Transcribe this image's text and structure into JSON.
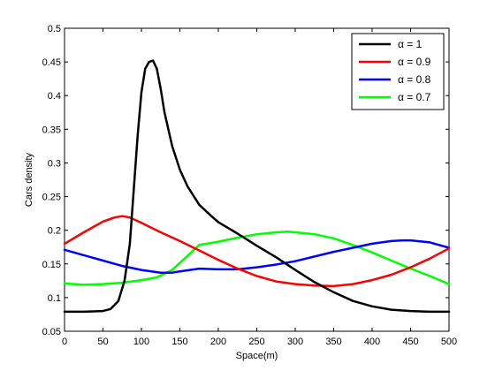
{
  "chart_data": {
    "type": "line",
    "xlabel": "Space(m)",
    "ylabel": "Cars density",
    "xlim": [
      0,
      500
    ],
    "ylim": [
      0.05,
      0.5
    ],
    "xticks": [
      0,
      50,
      100,
      150,
      200,
      250,
      300,
      350,
      400,
      450,
      500
    ],
    "yticks": [
      0.05,
      0.1,
      0.15,
      0.2,
      0.25,
      0.3,
      0.35,
      0.4,
      0.45,
      0.5
    ],
    "xtick_labels": [
      "0",
      "50",
      "100",
      "150",
      "200",
      "250",
      "300",
      "350",
      "400",
      "450",
      "500"
    ],
    "ytick_labels": [
      "0.05",
      "0.1",
      "0.15",
      "0.2",
      "0.25",
      "0.3",
      "0.35",
      "0.4",
      "0.45",
      "0.5"
    ],
    "grid": false,
    "legend_position": "top-right",
    "series": [
      {
        "name": "α = 1",
        "color": "#000000",
        "x": [
          0,
          25,
          50,
          60,
          70,
          78,
          85,
          90,
          95,
          100,
          105,
          110,
          115,
          120,
          125,
          130,
          140,
          150,
          160,
          175,
          190,
          200,
          225,
          250,
          275,
          300,
          325,
          350,
          375,
          400,
          425,
          450,
          475,
          500
        ],
        "y": [
          0.079,
          0.079,
          0.08,
          0.083,
          0.095,
          0.125,
          0.18,
          0.26,
          0.34,
          0.405,
          0.44,
          0.45,
          0.452,
          0.44,
          0.41,
          0.375,
          0.325,
          0.29,
          0.265,
          0.238,
          0.222,
          0.212,
          0.195,
          0.177,
          0.16,
          0.141,
          0.123,
          0.108,
          0.095,
          0.087,
          0.082,
          0.08,
          0.079,
          0.079
        ]
      },
      {
        "name": "α = 0.9",
        "color": "#ff0000",
        "x": [
          0,
          25,
          50,
          65,
          75,
          85,
          100,
          125,
          150,
          175,
          200,
          225,
          250,
          275,
          300,
          325,
          350,
          375,
          400,
          425,
          450,
          475,
          500
        ],
        "y": [
          0.18,
          0.197,
          0.213,
          0.219,
          0.221,
          0.219,
          0.211,
          0.197,
          0.184,
          0.17,
          0.156,
          0.143,
          0.132,
          0.124,
          0.12,
          0.118,
          0.117,
          0.12,
          0.126,
          0.134,
          0.145,
          0.158,
          0.173
        ]
      },
      {
        "name": "α = 0.8",
        "color": "#0000ff",
        "x": [
          0,
          25,
          50,
          75,
          100,
          125,
          140,
          150,
          175,
          200,
          225,
          250,
          275,
          300,
          325,
          350,
          375,
          400,
          425,
          440,
          450,
          475,
          500
        ],
        "y": [
          0.171,
          0.163,
          0.155,
          0.147,
          0.141,
          0.137,
          0.137,
          0.139,
          0.143,
          0.142,
          0.142,
          0.145,
          0.149,
          0.154,
          0.161,
          0.168,
          0.174,
          0.18,
          0.184,
          0.185,
          0.185,
          0.182,
          0.174
        ]
      },
      {
        "name": "α = 0.7",
        "color": "#00ff00",
        "x": [
          0,
          25,
          50,
          75,
          100,
          120,
          140,
          160,
          175,
          200,
          225,
          250,
          275,
          290,
          300,
          325,
          350,
          375,
          400,
          425,
          450,
          475,
          500
        ],
        "y": [
          0.121,
          0.119,
          0.12,
          0.122,
          0.126,
          0.13,
          0.141,
          0.162,
          0.178,
          0.183,
          0.189,
          0.194,
          0.197,
          0.198,
          0.197,
          0.194,
          0.188,
          0.178,
          0.167,
          0.155,
          0.143,
          0.132,
          0.12
        ]
      }
    ]
  }
}
